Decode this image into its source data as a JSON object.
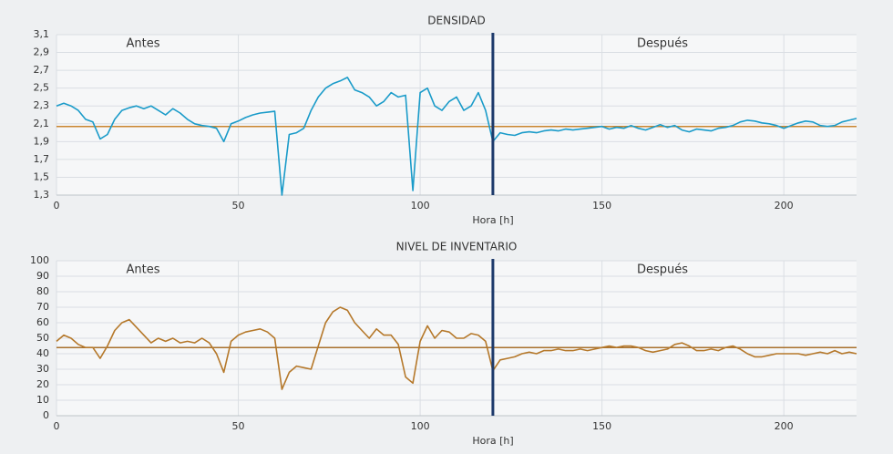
{
  "chart_data": [
    {
      "type": "line",
      "title": "DENSIDAD",
      "x_label": "Hora [h]",
      "annotations": [
        "Antes",
        "Después"
      ],
      "x": [
        0,
        2,
        4,
        6,
        8,
        10,
        12,
        14,
        16,
        18,
        20,
        22,
        24,
        26,
        28,
        30,
        32,
        34,
        36,
        38,
        40,
        42,
        44,
        46,
        48,
        50,
        52,
        54,
        56,
        58,
        60,
        62,
        64,
        66,
        68,
        70,
        72,
        74,
        76,
        78,
        80,
        82,
        84,
        86,
        88,
        90,
        92,
        94,
        96,
        98,
        100,
        102,
        104,
        106,
        108,
        110,
        112,
        114,
        116,
        118,
        120,
        122,
        124,
        126,
        128,
        130,
        132,
        134,
        136,
        138,
        140,
        142,
        144,
        146,
        148,
        150,
        152,
        154,
        156,
        158,
        160,
        162,
        164,
        166,
        168,
        170,
        172,
        174,
        176,
        178,
        180,
        182,
        184,
        186,
        188,
        190,
        192,
        194,
        196,
        198,
        200,
        202,
        204,
        206,
        208,
        210,
        212,
        214,
        216,
        218,
        220
      ],
      "series": [
        {
          "color": "#1a9bc9",
          "values": [
            2.3,
            2.33,
            2.3,
            2.25,
            2.15,
            2.12,
            1.93,
            1.98,
            2.15,
            2.25,
            2.28,
            2.3,
            2.27,
            2.3,
            2.25,
            2.2,
            2.27,
            2.22,
            2.15,
            2.1,
            2.08,
            2.07,
            2.05,
            1.9,
            2.1,
            2.13,
            2.17,
            2.2,
            2.22,
            2.23,
            2.24,
            1.3,
            1.98,
            2.0,
            2.05,
            2.25,
            2.4,
            2.5,
            2.55,
            2.58,
            2.62,
            2.48,
            2.45,
            2.4,
            2.3,
            2.35,
            2.45,
            2.4,
            2.42,
            1.35,
            2.45,
            2.5,
            2.3,
            2.25,
            2.35,
            2.4,
            2.25,
            2.3,
            2.45,
            2.25,
            1.9,
            2.0,
            1.98,
            1.97,
            2.0,
            2.01,
            2.0,
            2.02,
            2.03,
            2.02,
            2.04,
            2.03,
            2.04,
            2.05,
            2.06,
            2.07,
            2.04,
            2.06,
            2.05,
            2.08,
            2.05,
            2.03,
            2.06,
            2.09,
            2.06,
            2.08,
            2.03,
            2.01,
            2.04,
            2.03,
            2.02,
            2.05,
            2.06,
            2.08,
            2.12,
            2.14,
            2.13,
            2.11,
            2.1,
            2.08,
            2.05,
            2.08,
            2.11,
            2.13,
            2.12,
            2.08,
            2.07,
            2.08,
            2.12,
            2.14,
            2.16
          ]
        }
      ],
      "reference": 2.07,
      "reference_color": "#c9852f",
      "divider_x": 120,
      "divider_color": "#1d3a6b",
      "xlim": [
        0,
        220
      ],
      "xticks": [
        0,
        50,
        100,
        150,
        200
      ],
      "ylim": [
        1.3,
        3.1
      ],
      "yticks": [
        {
          "value": 1.3,
          "label": "1,3"
        },
        {
          "value": 1.5,
          "label": "1,5"
        },
        {
          "value": 1.7,
          "label": "1,7"
        },
        {
          "value": 1.9,
          "label": "1,9"
        },
        {
          "value": 2.1,
          "label": "2,1"
        },
        {
          "value": 2.3,
          "label": "2,3"
        },
        {
          "value": 2.5,
          "label": "2,5"
        },
        {
          "value": 2.7,
          "label": "2,7"
        },
        {
          "value": 2.9,
          "label": "2,9"
        },
        {
          "value": 3.1,
          "label": "3,1"
        }
      ],
      "grid": true
    },
    {
      "type": "line",
      "title": "NIVEL DE INVENTARIO",
      "x_label": "Hora [h]",
      "annotations": [
        "Antes",
        "Después"
      ],
      "x": [
        0,
        2,
        4,
        6,
        8,
        10,
        12,
        14,
        16,
        18,
        20,
        22,
        24,
        26,
        28,
        30,
        32,
        34,
        36,
        38,
        40,
        42,
        44,
        46,
        48,
        50,
        52,
        54,
        56,
        58,
        60,
        62,
        64,
        66,
        68,
        70,
        72,
        74,
        76,
        78,
        80,
        82,
        84,
        86,
        88,
        90,
        92,
        94,
        96,
        98,
        100,
        102,
        104,
        106,
        108,
        110,
        112,
        114,
        116,
        118,
        120,
        122,
        124,
        126,
        128,
        130,
        132,
        134,
        136,
        138,
        140,
        142,
        144,
        146,
        148,
        150,
        152,
        154,
        156,
        158,
        160,
        162,
        164,
        166,
        168,
        170,
        172,
        174,
        176,
        178,
        180,
        182,
        184,
        186,
        188,
        190,
        192,
        194,
        196,
        198,
        200,
        202,
        204,
        206,
        208,
        210,
        212,
        214,
        216,
        218,
        220
      ],
      "series": [
        {
          "color": "#b5782a",
          "values": [
            48,
            52,
            50,
            46,
            44,
            44,
            37,
            45,
            55,
            60,
            62,
            57,
            52,
            47,
            50,
            48,
            50,
            47,
            48,
            47,
            50,
            47,
            40,
            28,
            48,
            52,
            54,
            55,
            56,
            54,
            50,
            17,
            28,
            32,
            31,
            30,
            45,
            60,
            67,
            70,
            68,
            60,
            55,
            50,
            56,
            52,
            52,
            46,
            25,
            21,
            48,
            58,
            50,
            55,
            54,
            50,
            50,
            53,
            52,
            48,
            29,
            36,
            37,
            38,
            40,
            41,
            40,
            42,
            42,
            43,
            42,
            42,
            43,
            42,
            43,
            44,
            45,
            44,
            45,
            45,
            44,
            42,
            41,
            42,
            43,
            46,
            47,
            45,
            42,
            42,
            43,
            42,
            44,
            45,
            43,
            40,
            38,
            38,
            39,
            40,
            40,
            40,
            40,
            39,
            40,
            41,
            40,
            42,
            40,
            41,
            40
          ]
        }
      ],
      "reference": 44,
      "reference_color": "#a8702d",
      "divider_x": 120,
      "divider_color": "#1d3a6b",
      "xlim": [
        0,
        220
      ],
      "xticks": [
        0,
        50,
        100,
        150,
        200
      ],
      "ylim": [
        0,
        100
      ],
      "yticks": [
        0,
        10,
        20,
        30,
        40,
        50,
        60,
        70,
        80,
        90,
        100
      ],
      "grid": true
    }
  ]
}
